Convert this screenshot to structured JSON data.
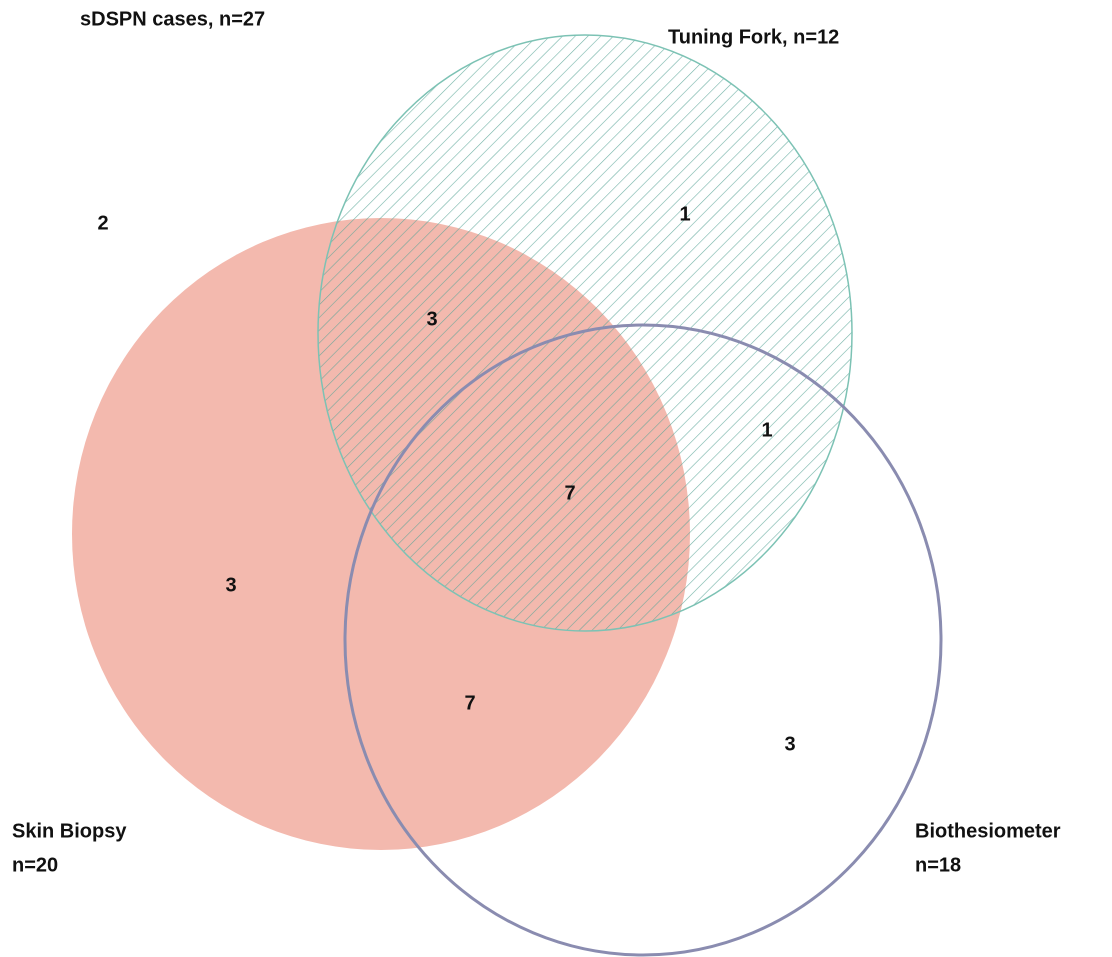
{
  "title": "sDSPN cases, n=27",
  "sets": [
    {
      "label": "Skin Biopsy",
      "count": "n=20"
    },
    {
      "label": "Tuning Fork, n=12"
    },
    {
      "label": "Biothesiometer",
      "count": "n=18"
    }
  ],
  "regions": {
    "none": 2,
    "tuning_fork_only": 1,
    "skin_biopsy_and_tuning_fork": 3,
    "tuning_fork_and_biothesiometer": 1,
    "all_three": 7,
    "skin_biopsy_only": 3,
    "skin_biopsy_and_biothesiometer": 7,
    "biothesiometer_only": 3
  }
}
